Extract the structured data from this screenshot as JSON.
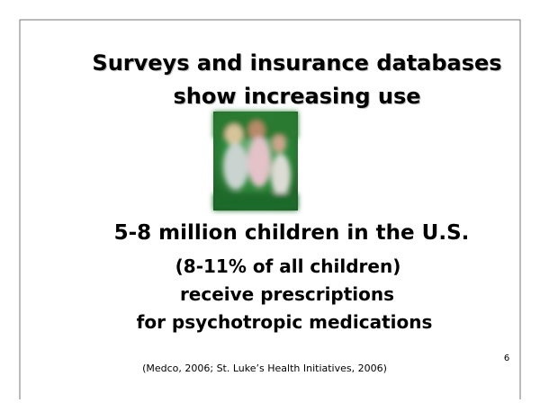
{
  "slide": {
    "title": [
      "Surveys and insurance databases",
      "show increasing use"
    ],
    "body": [
      "5-8 million children in the U.S.",
      "(8-11% of all children)",
      "receive prescriptions",
      "for psychotropic medications"
    ],
    "citation": "(Medco, 2006; St. Luke’s Health Initiatives, 2006)",
    "page_number": "6"
  }
}
